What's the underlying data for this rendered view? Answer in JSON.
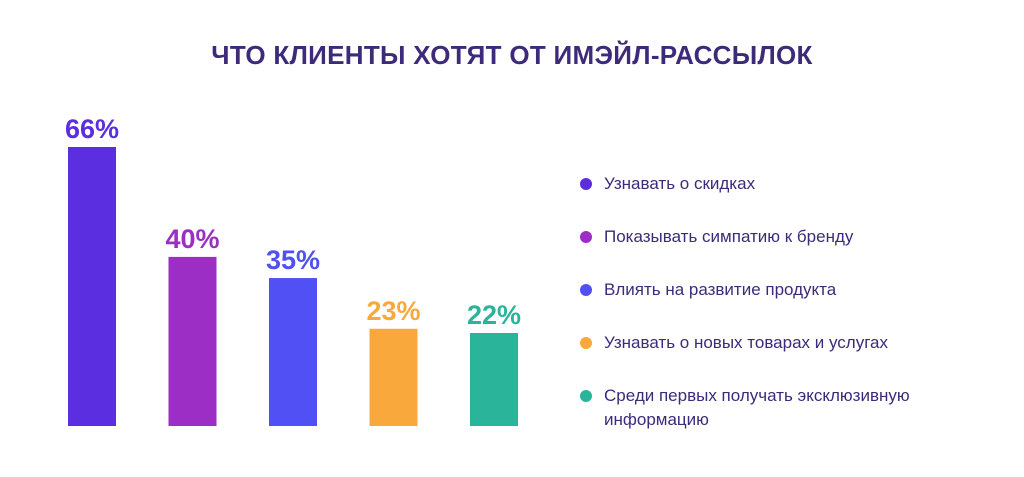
{
  "chart_data": {
    "type": "bar",
    "title": "ЧТО КЛИЕНТЫ ХОТЯТ ОТ ИМЭЙЛ-РАССЫЛОК",
    "categories": [
      "Узнавать о скидках",
      "Показывать симпатию к бренду",
      "Влиять на развитие продукта",
      "Узнавать о новых товарах и услугах",
      "Среди первых получать эксклюзивную информацию"
    ],
    "values": [
      66,
      40,
      35,
      23,
      22
    ],
    "value_labels": [
      "66%",
      "40%",
      "35%",
      "23%",
      "22%"
    ],
    "colors": [
      "#5b2fe0",
      "#9c2ec6",
      "#5150f5",
      "#f9a93c",
      "#2ab59b"
    ],
    "xlabel": "",
    "ylabel": "",
    "ylim": [
      0,
      66
    ],
    "grid": false,
    "legend": "right"
  }
}
